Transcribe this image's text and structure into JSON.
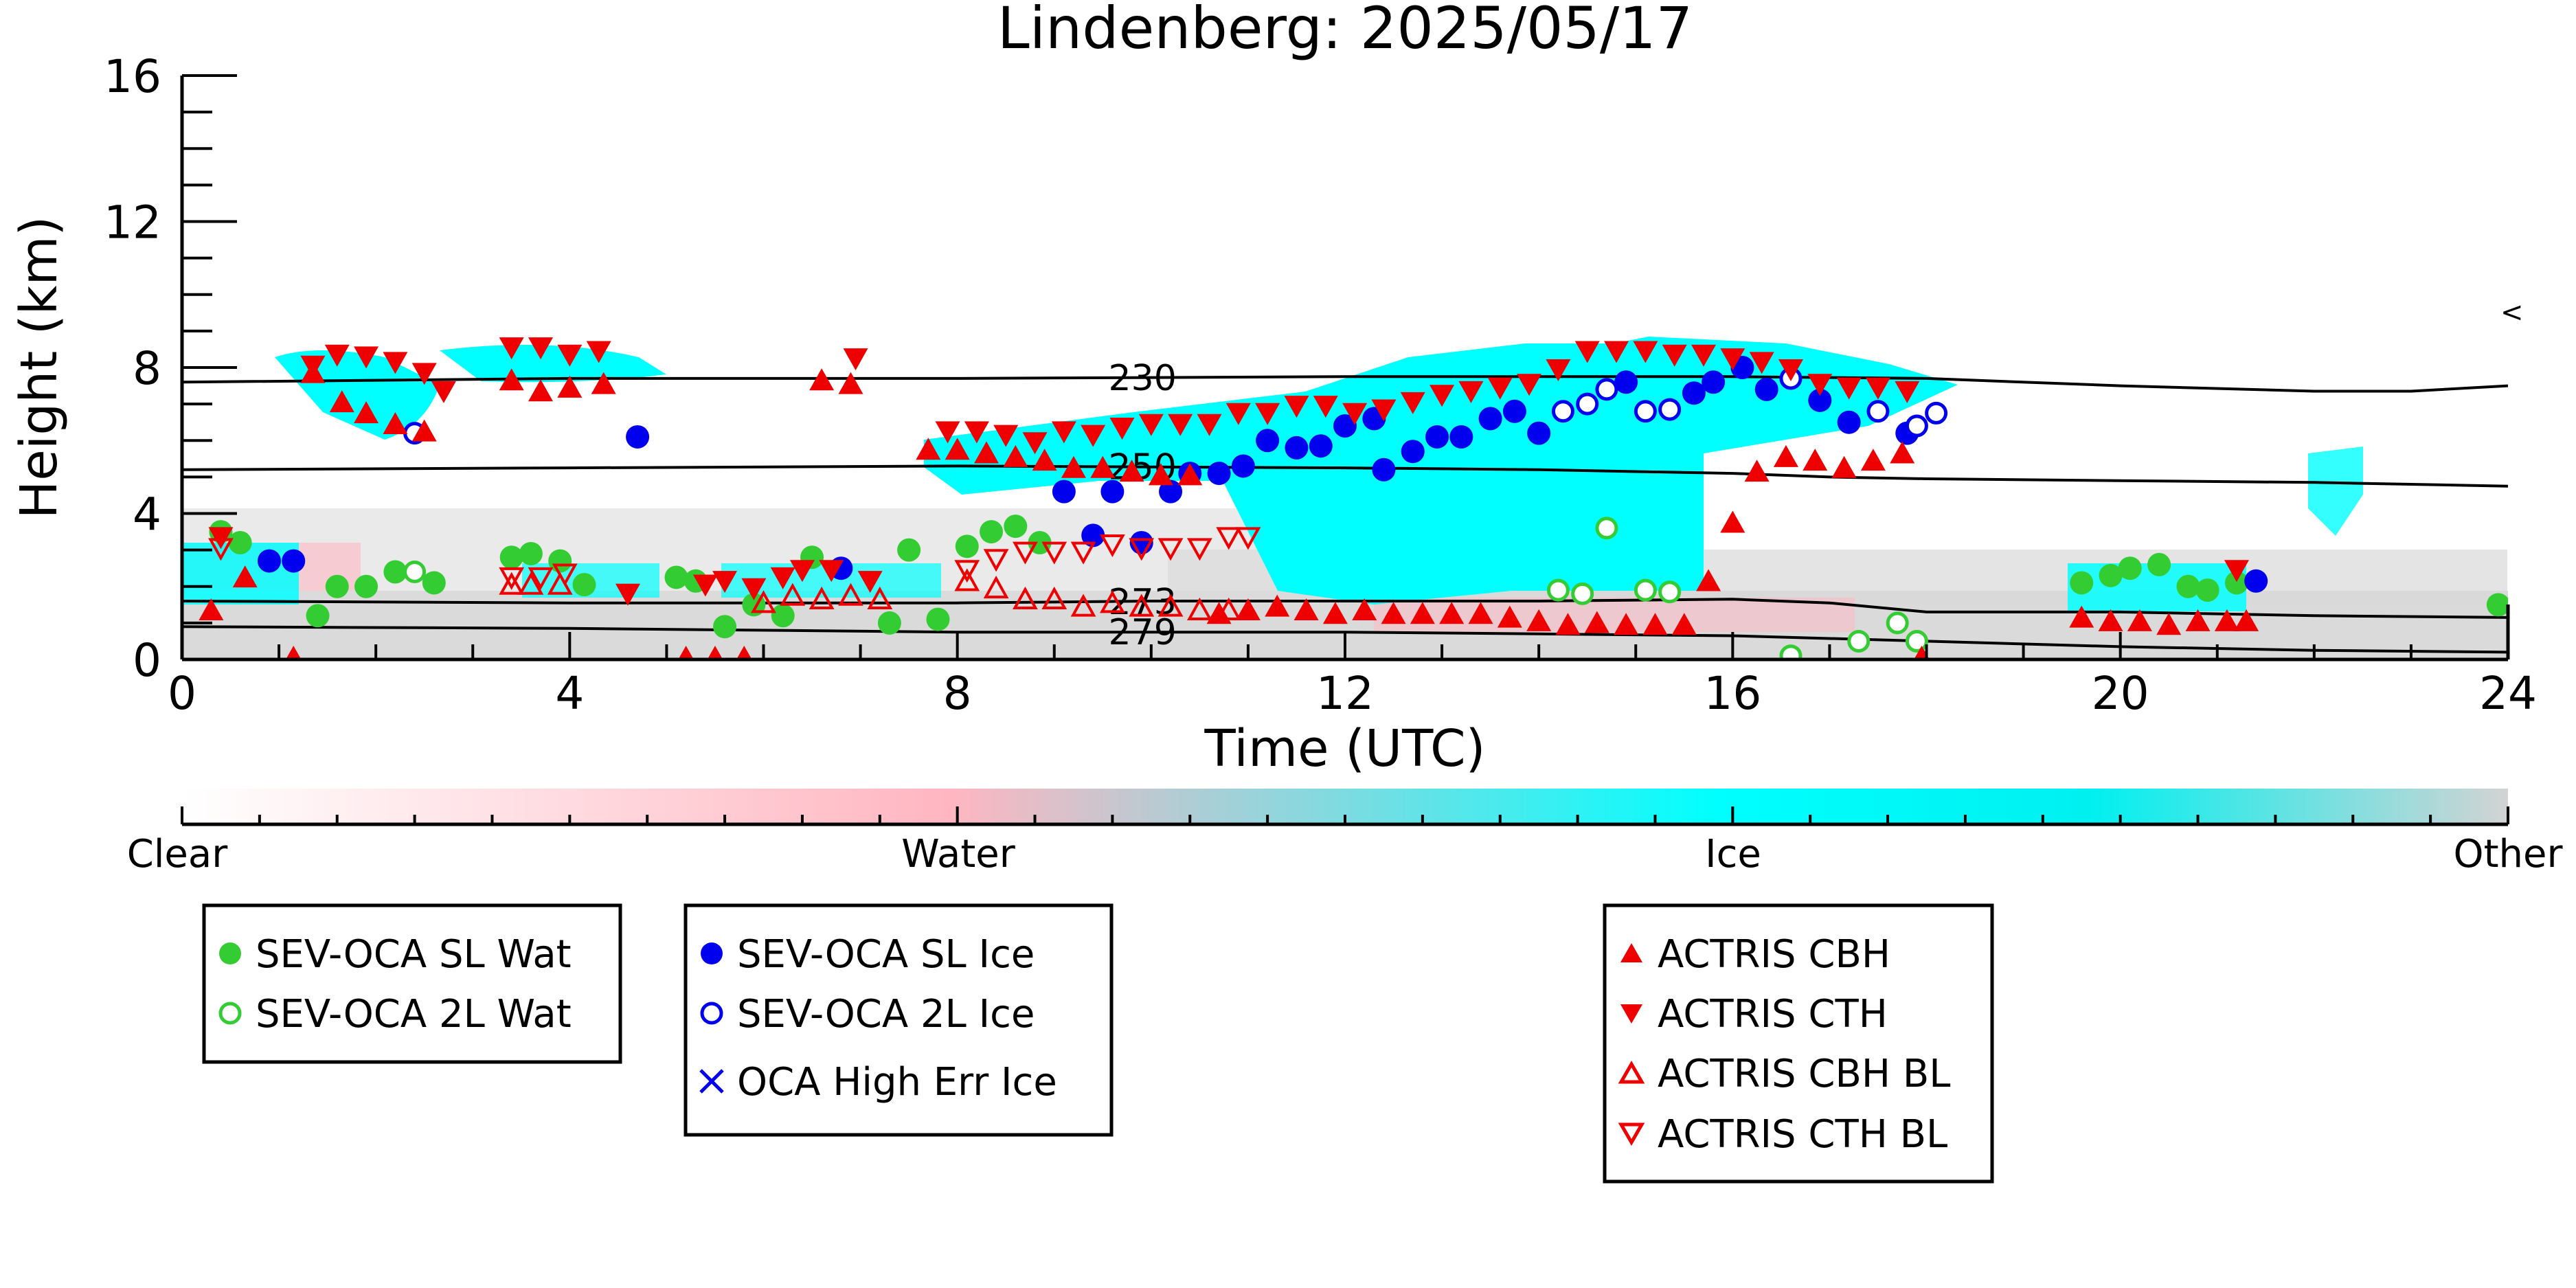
{
  "chart_data": {
    "type": "scatter",
    "title": "Lindenberg: 2025/05/17",
    "xlabel": "Time (UTC)",
    "ylabel": "Height (km)",
    "xlim": [
      0,
      24
    ],
    "ylim": [
      0,
      16
    ],
    "x_ticks": [
      0,
      4,
      8,
      12,
      16,
      20,
      24
    ],
    "y_ticks": [
      0,
      4,
      8,
      12,
      16
    ],
    "grid": false,
    "colorbar": {
      "labels": [
        "Clear",
        "Water",
        "Ice",
        "Other"
      ],
      "colors": [
        "#ffffff",
        "#ffb6c1",
        "#00ffff",
        "#d3d3d3"
      ]
    },
    "contours": [
      {
        "label": "230",
        "label_x": 9.4,
        "points": [
          [
            0,
            7.6
          ],
          [
            4,
            7.7
          ],
          [
            8,
            7.7
          ],
          [
            12,
            7.75
          ],
          [
            16,
            7.75
          ],
          [
            18,
            7.7
          ],
          [
            20,
            7.5
          ],
          [
            22,
            7.35
          ],
          [
            23,
            7.35
          ],
          [
            24,
            7.5
          ]
        ]
      },
      {
        "label": "250",
        "label_x": 9.4,
        "points": [
          [
            0,
            5.2
          ],
          [
            4,
            5.25
          ],
          [
            8,
            5.3
          ],
          [
            12,
            5.25
          ],
          [
            14,
            5.2
          ],
          [
            16,
            5.1
          ],
          [
            17,
            5.0
          ],
          [
            18,
            4.95
          ],
          [
            20,
            4.9
          ],
          [
            22,
            4.85
          ],
          [
            24,
            4.75
          ]
        ]
      },
      {
        "label": "273",
        "label_x": 9.4,
        "points": [
          [
            0,
            1.6
          ],
          [
            4,
            1.55
          ],
          [
            8,
            1.55
          ],
          [
            10,
            1.6
          ],
          [
            12,
            1.6
          ],
          [
            14,
            1.6
          ],
          [
            16,
            1.65
          ],
          [
            17,
            1.55
          ],
          [
            18,
            1.3
          ],
          [
            19,
            1.3
          ],
          [
            20,
            1.3
          ],
          [
            22,
            1.2
          ],
          [
            24,
            1.15
          ]
        ]
      },
      {
        "label": "279",
        "label_x": 9.4,
        "points": [
          [
            0,
            0.9
          ],
          [
            4,
            0.85
          ],
          [
            8,
            0.75
          ],
          [
            10,
            0.75
          ],
          [
            12,
            0.75
          ],
          [
            14,
            0.7
          ],
          [
            16,
            0.65
          ],
          [
            18,
            0.5
          ],
          [
            20,
            0.35
          ],
          [
            22,
            0.25
          ],
          [
            24,
            0.2
          ]
        ]
      }
    ],
    "series": [
      {
        "name": "SEV-OCA SL Wat",
        "marker": "filled-circle",
        "color": "#33cc33",
        "points": [
          [
            0.4,
            3.5
          ],
          [
            0.6,
            3.2
          ],
          [
            1.4,
            1.2
          ],
          [
            1.6,
            2.0
          ],
          [
            1.9,
            2.0
          ],
          [
            2.2,
            2.4
          ],
          [
            2.6,
            2.1
          ],
          [
            3.4,
            2.8
          ],
          [
            3.6,
            2.9
          ],
          [
            3.9,
            2.7
          ],
          [
            4.15,
            2.05
          ],
          [
            5.1,
            2.25
          ],
          [
            5.3,
            2.15
          ],
          [
            5.6,
            0.9
          ],
          [
            5.9,
            1.5
          ],
          [
            6.2,
            1.2
          ],
          [
            6.5,
            2.8
          ],
          [
            7.3,
            1.0
          ],
          [
            7.5,
            3.0
          ],
          [
            7.8,
            1.1
          ],
          [
            8.1,
            3.1
          ],
          [
            8.35,
            3.5
          ],
          [
            8.6,
            3.65
          ],
          [
            8.85,
            3.2
          ],
          [
            19.6,
            2.1
          ],
          [
            19.9,
            2.3
          ],
          [
            20.1,
            2.5
          ],
          [
            20.4,
            2.6
          ],
          [
            20.7,
            2.0
          ],
          [
            20.9,
            1.9
          ],
          [
            21.2,
            2.1
          ],
          [
            23.9,
            1.5
          ]
        ]
      },
      {
        "name": "SEV-OCA 2L Wat",
        "marker": "open-circle",
        "color": "#33cc33",
        "points": [
          [
            2.4,
            2.4
          ],
          [
            14.2,
            1.9
          ],
          [
            14.45,
            1.8
          ],
          [
            14.7,
            3.6
          ],
          [
            15.1,
            1.9
          ],
          [
            15.35,
            1.85
          ],
          [
            16.6,
            0.1
          ],
          [
            17.3,
            0.5
          ],
          [
            17.7,
            1.0
          ],
          [
            17.9,
            0.5
          ]
        ]
      },
      {
        "name": "SEV-OCA SL Ice",
        "marker": "filled-circle",
        "color": "#0000ee",
        "points": [
          [
            0.9,
            2.7
          ],
          [
            1.15,
            2.7
          ],
          [
            4.7,
            6.1
          ],
          [
            6.8,
            2.5
          ],
          [
            9.1,
            4.6
          ],
          [
            9.4,
            3.4
          ],
          [
            9.6,
            4.6
          ],
          [
            9.9,
            3.2
          ],
          [
            10.2,
            4.6
          ],
          [
            10.4,
            5.1
          ],
          [
            10.7,
            5.1
          ],
          [
            10.95,
            5.3
          ],
          [
            11.2,
            6.0
          ],
          [
            11.5,
            5.8
          ],
          [
            11.75,
            5.85
          ],
          [
            12.0,
            6.4
          ],
          [
            12.3,
            6.6
          ],
          [
            12.4,
            5.2
          ],
          [
            12.7,
            5.7
          ],
          [
            12.95,
            6.1
          ],
          [
            13.2,
            6.1
          ],
          [
            13.5,
            6.6
          ],
          [
            13.75,
            6.8
          ],
          [
            14.0,
            6.2
          ],
          [
            14.9,
            7.6
          ],
          [
            15.6,
            7.3
          ],
          [
            15.8,
            7.6
          ],
          [
            16.1,
            8.0
          ],
          [
            16.35,
            7.4
          ],
          [
            16.9,
            7.1
          ],
          [
            17.2,
            6.5
          ],
          [
            17.8,
            6.2
          ],
          [
            21.4,
            2.15
          ]
        ]
      },
      {
        "name": "SEV-OCA 2L Ice",
        "marker": "open-circle",
        "color": "#0000ee",
        "points": [
          [
            2.4,
            6.2
          ],
          [
            14.25,
            6.8
          ],
          [
            14.5,
            7.0
          ],
          [
            14.7,
            7.4
          ],
          [
            15.1,
            6.8
          ],
          [
            15.35,
            6.85
          ],
          [
            16.6,
            7.7
          ],
          [
            17.5,
            6.8
          ],
          [
            17.9,
            6.4
          ],
          [
            18.1,
            6.75
          ]
        ]
      },
      {
        "name": "OCA High Err Ice",
        "marker": "x",
        "color": "#0000ee",
        "points": []
      },
      {
        "name": "ACTRIS CBH",
        "marker": "filled-triangle-up",
        "color": "#ee0000",
        "points": [
          [
            0.3,
            1.3
          ],
          [
            0.65,
            2.2
          ],
          [
            1.15,
            0
          ],
          [
            1.35,
            7.8
          ],
          [
            1.65,
            7.0
          ],
          [
            1.9,
            6.7
          ],
          [
            2.2,
            6.4
          ],
          [
            2.5,
            6.2
          ],
          [
            3.4,
            7.6
          ],
          [
            3.7,
            7.3
          ],
          [
            4.0,
            7.4
          ],
          [
            4.35,
            7.5
          ],
          [
            5.2,
            0
          ],
          [
            5.5,
            0
          ],
          [
            5.8,
            0
          ],
          [
            6.6,
            7.6
          ],
          [
            6.9,
            7.5
          ],
          [
            7.7,
            5.7
          ],
          [
            8.0,
            5.7
          ],
          [
            8.3,
            5.6
          ],
          [
            8.6,
            5.5
          ],
          [
            8.9,
            5.4
          ],
          [
            9.2,
            5.2
          ],
          [
            9.5,
            5.2
          ],
          [
            9.8,
            5.1
          ],
          [
            10.1,
            5.0
          ],
          [
            10.4,
            5.0
          ],
          [
            10.7,
            1.2
          ],
          [
            11.0,
            1.3
          ],
          [
            11.3,
            1.4
          ],
          [
            11.6,
            1.3
          ],
          [
            11.9,
            1.2
          ],
          [
            12.2,
            1.3
          ],
          [
            12.5,
            1.2
          ],
          [
            12.8,
            1.2
          ],
          [
            13.1,
            1.2
          ],
          [
            13.4,
            1.2
          ],
          [
            13.7,
            1.1
          ],
          [
            14.0,
            1.0
          ],
          [
            14.3,
            0.9
          ],
          [
            14.6,
            0.95
          ],
          [
            14.9,
            0.9
          ],
          [
            15.2,
            0.9
          ],
          [
            15.5,
            0.9
          ],
          [
            15.75,
            2.1
          ],
          [
            16.0,
            3.7
          ],
          [
            16.25,
            5.1
          ],
          [
            16.55,
            5.5
          ],
          [
            16.85,
            5.4
          ],
          [
            17.15,
            5.2
          ],
          [
            17.45,
            5.4
          ],
          [
            17.75,
            5.6
          ],
          [
            17.95,
            0
          ],
          [
            19.6,
            1.1
          ],
          [
            19.9,
            1.0
          ],
          [
            20.2,
            1.0
          ],
          [
            20.5,
            0.9
          ],
          [
            20.8,
            1.0
          ],
          [
            21.1,
            1.0
          ],
          [
            21.3,
            1.0
          ]
        ]
      },
      {
        "name": "ACTRIS CTH",
        "marker": "filled-triangle-down",
        "color": "#ee0000",
        "points": [
          [
            0.4,
            3.4
          ],
          [
            1.35,
            8.1
          ],
          [
            1.6,
            8.4
          ],
          [
            1.9,
            8.35
          ],
          [
            2.2,
            8.2
          ],
          [
            2.5,
            7.9
          ],
          [
            2.7,
            7.4
          ],
          [
            3.4,
            8.6
          ],
          [
            3.7,
            8.6
          ],
          [
            4.0,
            8.4
          ],
          [
            4.3,
            8.5
          ],
          [
            4.6,
            1.85
          ],
          [
            5.4,
            2.1
          ],
          [
            5.6,
            2.2
          ],
          [
            5.9,
            2.0
          ],
          [
            6.2,
            2.3
          ],
          [
            6.4,
            2.5
          ],
          [
            6.7,
            2.5
          ],
          [
            6.95,
            8.3
          ],
          [
            7.1,
            2.2
          ],
          [
            7.9,
            6.3
          ],
          [
            8.2,
            6.3
          ],
          [
            8.5,
            6.2
          ],
          [
            8.8,
            6.0
          ],
          [
            9.1,
            6.3
          ],
          [
            9.4,
            6.2
          ],
          [
            9.7,
            6.4
          ],
          [
            10.0,
            6.5
          ],
          [
            10.3,
            6.5
          ],
          [
            10.6,
            6.5
          ],
          [
            10.9,
            6.8
          ],
          [
            11.2,
            6.8
          ],
          [
            11.5,
            7.0
          ],
          [
            11.8,
            7.0
          ],
          [
            12.1,
            6.8
          ],
          [
            12.4,
            6.9
          ],
          [
            12.7,
            7.1
          ],
          [
            13.0,
            7.3
          ],
          [
            13.3,
            7.4
          ],
          [
            13.6,
            7.5
          ],
          [
            13.9,
            7.6
          ],
          [
            14.2,
            8.0
          ],
          [
            14.5,
            8.5
          ],
          [
            14.8,
            8.5
          ],
          [
            15.1,
            8.5
          ],
          [
            15.4,
            8.4
          ],
          [
            15.7,
            8.4
          ],
          [
            16.0,
            8.3
          ],
          [
            16.3,
            8.2
          ],
          [
            16.6,
            8.0
          ],
          [
            16.9,
            7.6
          ],
          [
            17.2,
            7.5
          ],
          [
            17.5,
            7.5
          ],
          [
            17.8,
            7.4
          ],
          [
            21.2,
            2.5
          ]
        ]
      },
      {
        "name": "ACTRIS CBH BL",
        "marker": "open-triangle-up",
        "color": "#ee0000",
        "points": [
          [
            3.4,
            2.0
          ],
          [
            3.6,
            2.0
          ],
          [
            3.9,
            2.0
          ],
          [
            6.0,
            1.5
          ],
          [
            6.3,
            1.7
          ],
          [
            6.6,
            1.6
          ],
          [
            6.9,
            1.7
          ],
          [
            7.2,
            1.6
          ],
          [
            8.1,
            2.1
          ],
          [
            8.4,
            1.9
          ],
          [
            8.7,
            1.6
          ],
          [
            9.0,
            1.6
          ],
          [
            9.3,
            1.4
          ],
          [
            9.6,
            1.5
          ],
          [
            9.9,
            1.4
          ],
          [
            10.2,
            1.4
          ],
          [
            10.5,
            1.3
          ],
          [
            10.8,
            1.3
          ]
        ]
      },
      {
        "name": "ACTRIS CTH BL",
        "marker": "open-triangle-down",
        "color": "#ee0000",
        "points": [
          [
            0.4,
            3.1
          ],
          [
            3.4,
            2.3
          ],
          [
            3.7,
            2.3
          ],
          [
            3.95,
            2.4
          ],
          [
            8.1,
            2.5
          ],
          [
            8.4,
            2.8
          ],
          [
            8.7,
            3.0
          ],
          [
            9.0,
            3.0
          ],
          [
            9.3,
            3.0
          ],
          [
            9.6,
            3.2
          ],
          [
            9.9,
            3.1
          ],
          [
            10.2,
            3.1
          ],
          [
            10.5,
            3.1
          ],
          [
            10.8,
            3.4
          ],
          [
            11.0,
            3.4
          ]
        ]
      }
    ]
  }
}
